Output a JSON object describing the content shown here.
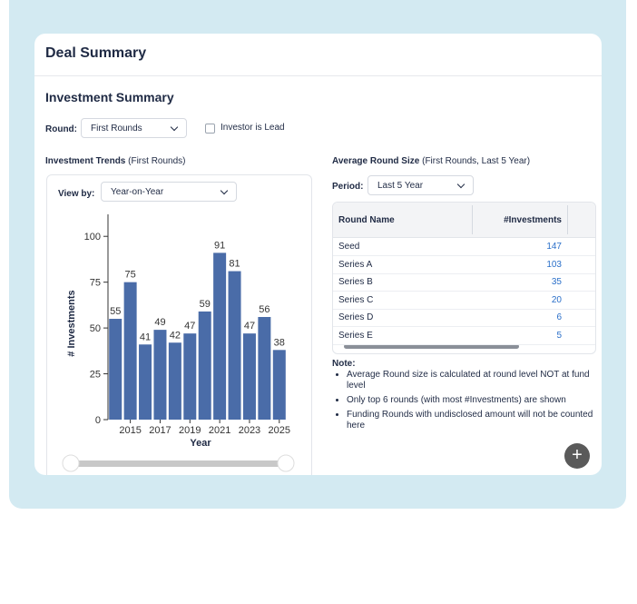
{
  "header": {
    "title": "Deal Summary"
  },
  "section": {
    "title": "Investment Summary",
    "round_label": "Round:",
    "round_value": "First Rounds",
    "investor_lead": "Investor is Lead"
  },
  "trends": {
    "title": "Investment Trends",
    "subtitle": "(First Rounds)",
    "view_label": "View by:",
    "view_value": "Year-on-Year"
  },
  "chart_data": {
    "type": "bar",
    "y_label": "# Investments",
    "x_label": "Year",
    "categories": [
      null,
      "2015",
      null,
      "2017",
      null,
      "2019",
      null,
      "2021",
      null,
      "2023",
      null,
      "2025"
    ],
    "values": [
      55,
      75,
      41,
      49,
      42,
      47,
      59,
      91,
      81,
      47,
      56,
      38
    ],
    "color": "#4a6ca8",
    "ylim": [
      0,
      112
    ],
    "yticks": [
      0,
      25,
      50,
      75,
      100
    ]
  },
  "round_size": {
    "title": "Average Round Size",
    "subtitle": "(First Rounds, Last 5 Year)",
    "period_label": "Period:",
    "period_value": "Last 5 Year"
  },
  "table": {
    "columns": [
      "Round Name",
      "#Investments"
    ],
    "rows": [
      [
        "Seed",
        147
      ],
      [
        "Series A",
        103
      ],
      [
        "Series B",
        35
      ],
      [
        "Series C",
        20
      ],
      [
        "Series D",
        6
      ],
      [
        "Series E",
        5
      ]
    ]
  },
  "notes": {
    "title": "Note:",
    "items": [
      "Average Round size is calculated at round level NOT at fund level",
      "Only top 6 rounds (with most #Investments) are shown",
      "Funding Rounds with undisclosed amount will not be counted here"
    ]
  }
}
